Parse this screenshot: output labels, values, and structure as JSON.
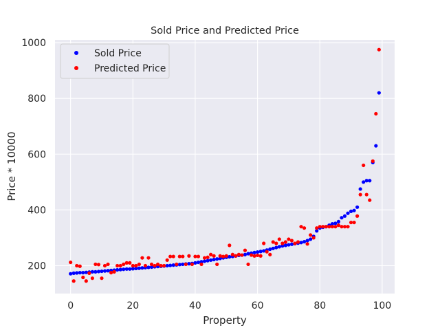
{
  "chart_data": {
    "type": "scatter",
    "title": "Sold Price and Predicted Price",
    "xlabel": "Property",
    "ylabel": "Price * 10000",
    "xlim": [
      -5,
      104
    ],
    "ylim": [
      100,
      1010
    ],
    "xticks": [
      0,
      20,
      40,
      60,
      80,
      100
    ],
    "yticks": [
      200,
      400,
      600,
      800,
      1000
    ],
    "grid": true,
    "legend": "top-left",
    "background_color": "#eaeaf2",
    "series": [
      {
        "name": "Sold Price",
        "color": "#0000ff",
        "x": [
          0,
          1,
          2,
          3,
          4,
          5,
          6,
          7,
          8,
          9,
          10,
          11,
          12,
          13,
          14,
          15,
          16,
          17,
          18,
          19,
          20,
          21,
          22,
          23,
          24,
          25,
          26,
          27,
          28,
          29,
          30,
          31,
          32,
          33,
          34,
          35,
          36,
          37,
          38,
          39,
          40,
          41,
          42,
          43,
          44,
          45,
          46,
          47,
          48,
          49,
          50,
          51,
          52,
          53,
          54,
          55,
          56,
          57,
          58,
          59,
          60,
          61,
          62,
          63,
          64,
          65,
          66,
          67,
          68,
          69,
          70,
          71,
          72,
          73,
          74,
          75,
          76,
          77,
          78,
          79,
          80,
          81,
          82,
          83,
          84,
          85,
          86,
          87,
          88,
          89,
          90,
          91,
          92,
          93,
          94,
          95,
          96,
          97,
          98,
          99
        ],
        "y": [
          171,
          173,
          174,
          175,
          175,
          176,
          177,
          178,
          178,
          179,
          180,
          181,
          182,
          183,
          184,
          185,
          186,
          187,
          188,
          188,
          189,
          190,
          191,
          192,
          193,
          194,
          195,
          196,
          197,
          198,
          199,
          200,
          201,
          202,
          203,
          204,
          205,
          206,
          207,
          208,
          210,
          212,
          214,
          216,
          218,
          220,
          222,
          224,
          226,
          228,
          230,
          232,
          233,
          235,
          237,
          238,
          240,
          243,
          245,
          247,
          249,
          251,
          253,
          256,
          259,
          262,
          265,
          268,
          271,
          273,
          275,
          277,
          279,
          281,
          283,
          286,
          290,
          295,
          305,
          325,
          335,
          338,
          340,
          345,
          350,
          352,
          358,
          372,
          378,
          388,
          395,
          398,
          410,
          475,
          500,
          505,
          505,
          570,
          630,
          820
        ]
      },
      {
        "name": "Predicted Price",
        "color": "#ff0000",
        "x": [
          0,
          1,
          2,
          3,
          4,
          5,
          6,
          7,
          8,
          9,
          10,
          11,
          12,
          13,
          14,
          15,
          16,
          17,
          18,
          19,
          20,
          21,
          22,
          23,
          24,
          25,
          26,
          27,
          28,
          29,
          30,
          31,
          32,
          33,
          34,
          35,
          36,
          37,
          38,
          39,
          40,
          41,
          42,
          43,
          44,
          45,
          46,
          47,
          48,
          49,
          50,
          51,
          52,
          53,
          54,
          55,
          56,
          57,
          58,
          59,
          60,
          61,
          62,
          63,
          64,
          65,
          66,
          67,
          68,
          69,
          70,
          71,
          72,
          73,
          74,
          75,
          76,
          77,
          78,
          79,
          80,
          81,
          82,
          83,
          84,
          85,
          86,
          87,
          88,
          89,
          90,
          91,
          92,
          93,
          94,
          95,
          96,
          97,
          98,
          99
        ],
        "y": [
          212,
          145,
          200,
          198,
          158,
          145,
          173,
          155,
          205,
          204,
          155,
          200,
          205,
          175,
          178,
          200,
          200,
          205,
          210,
          210,
          200,
          200,
          205,
          228,
          200,
          228,
          205,
          200,
          205,
          200,
          200,
          220,
          233,
          233,
          205,
          233,
          233,
          205,
          235,
          205,
          233,
          233,
          205,
          228,
          230,
          240,
          235,
          205,
          235,
          233,
          235,
          273,
          240,
          235,
          240,
          238,
          255,
          205,
          238,
          235,
          237,
          235,
          280,
          250,
          240,
          285,
          280,
          295,
          280,
          285,
          295,
          290,
          280,
          285,
          340,
          335,
          278,
          310,
          300,
          335,
          340,
          340,
          340,
          340,
          340,
          340,
          345,
          340,
          340,
          340,
          355,
          355,
          378,
          455,
          560,
          455,
          435,
          575,
          745,
          975
        ]
      }
    ]
  }
}
